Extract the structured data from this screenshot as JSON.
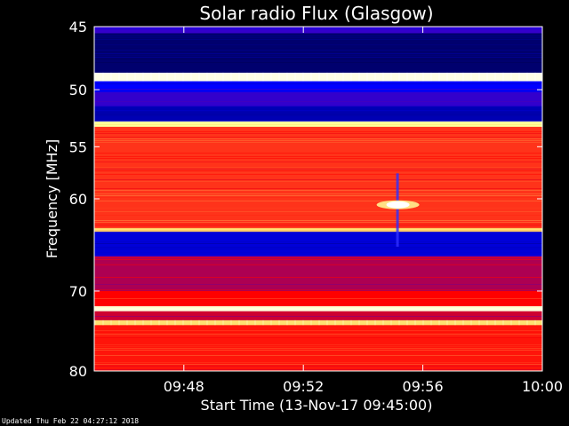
{
  "chart_data": {
    "type": "heatmap",
    "title": "Solar radio Flux (Glasgow)",
    "ylabel": "Frequency [MHz]",
    "xlabel": "Start Time (13-Nov-17 09:45:00)",
    "y_ticks": [
      45,
      50,
      55,
      60,
      70,
      80
    ],
    "x_ticks": [
      "09:48",
      "09:52",
      "09:56",
      "10:00"
    ],
    "y_range": [
      45,
      80
    ],
    "y_scale": "log",
    "x_range": [
      "09:45",
      "10:00"
    ],
    "colormap": [
      "#000040",
      "#0000ff",
      "#ff0000",
      "#ffff80",
      "#ffffff"
    ],
    "bands": [
      {
        "from": 45,
        "to": 45.5,
        "level": 0.3
      },
      {
        "from": 45.5,
        "to": 48.6,
        "level": 0.06
      },
      {
        "from": 48.6,
        "to": 49.3,
        "level": 0.95
      },
      {
        "from": 49.3,
        "to": 50.2,
        "level": 0.25
      },
      {
        "from": 50.2,
        "to": 51.4,
        "level": 0.3
      },
      {
        "from": 51.4,
        "to": 52.7,
        "level": 0.15
      },
      {
        "from": 52.7,
        "to": 53.2,
        "level": 0.8
      },
      {
        "from": 53.2,
        "to": 63.0,
        "level": 0.55
      },
      {
        "from": 63.0,
        "to": 63.4,
        "level": 0.7
      },
      {
        "from": 63.4,
        "to": 66.0,
        "level": 0.2
      },
      {
        "from": 66.0,
        "to": 70.0,
        "level": 0.42
      },
      {
        "from": 70.0,
        "to": 71.8,
        "level": 0.5
      },
      {
        "from": 71.8,
        "to": 72.4,
        "level": 0.93
      },
      {
        "from": 72.4,
        "to": 73.5,
        "level": 0.45
      },
      {
        "from": 73.5,
        "to": 74.1,
        "level": 0.72
      },
      {
        "from": 74.1,
        "to": 80,
        "level": 0.52
      }
    ],
    "burst": {
      "time": "09:55:10",
      "freq": 60.6,
      "level": 1.0
    }
  },
  "footer": {
    "updated": "Updated Thu Feb 22 04:27:12 2018"
  }
}
